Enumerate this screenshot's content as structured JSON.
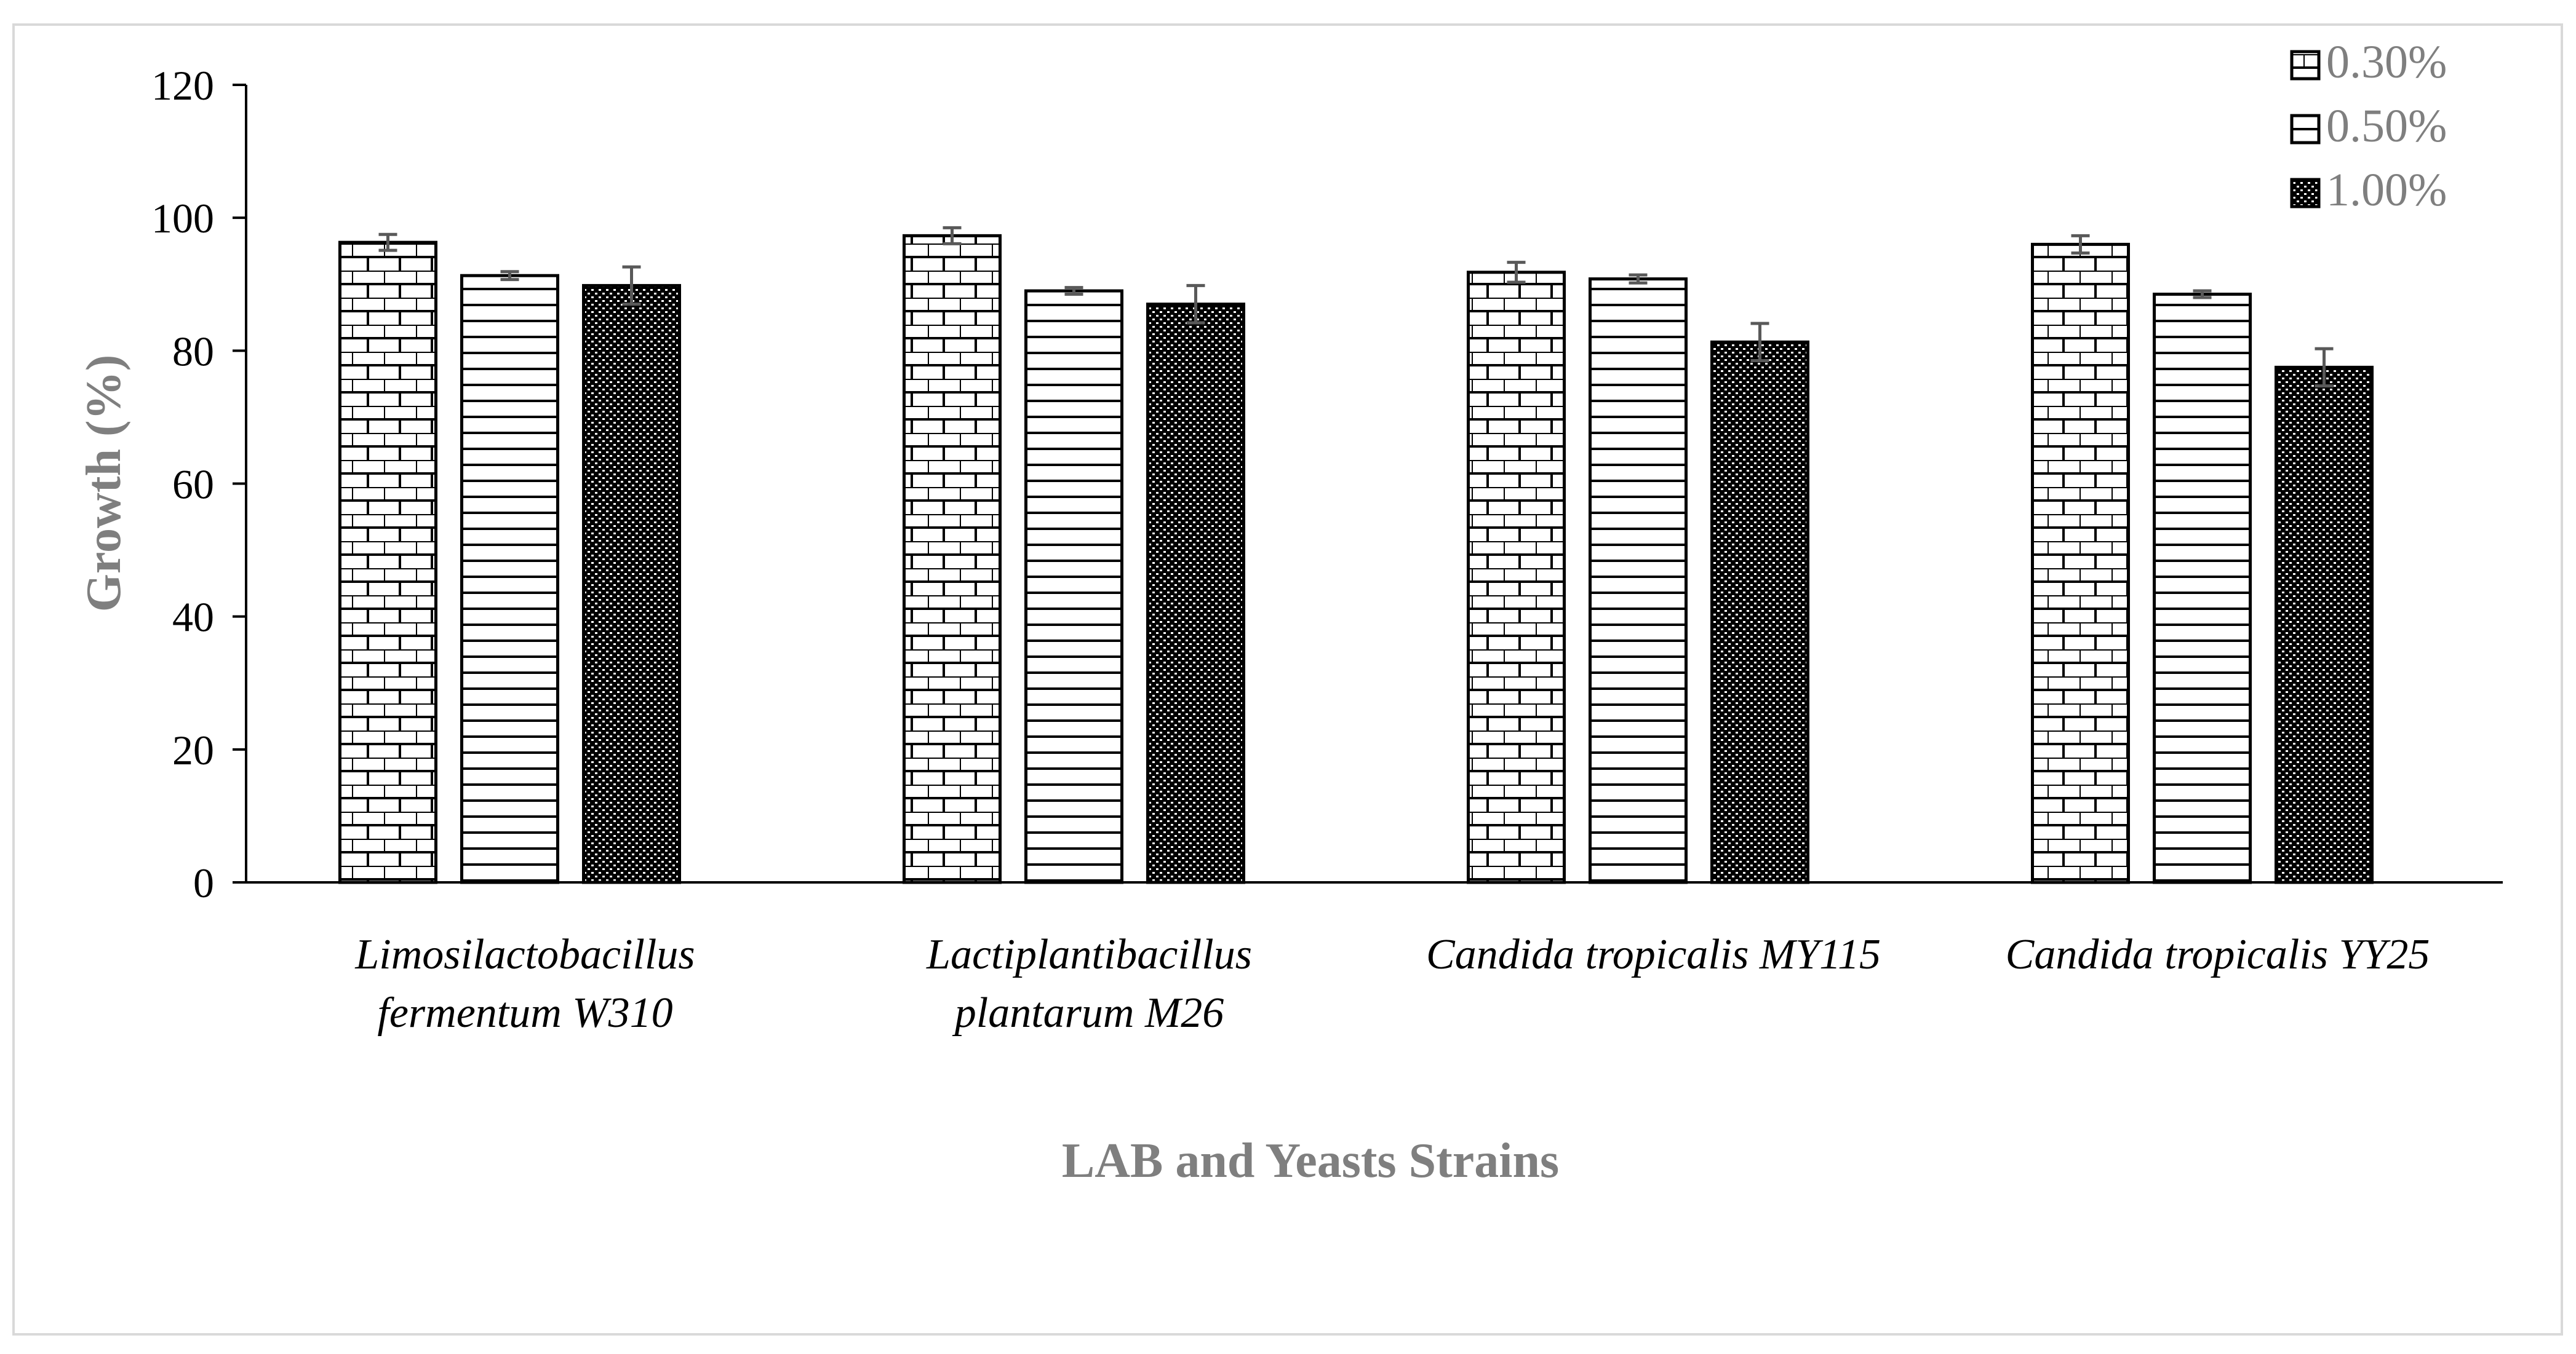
{
  "chart_data": {
    "type": "bar",
    "title": "",
    "xlabel": "LAB and Yeasts Strains",
    "ylabel": "Growth (%)",
    "ylim": [
      0,
      120
    ],
    "yticks": [
      0,
      20,
      40,
      60,
      80,
      100,
      120
    ],
    "grid": false,
    "legend_position": "top-right",
    "categories": [
      [
        "Limosilactobacillus",
        "fermentum W310"
      ],
      [
        "Lactiplantibacillus",
        "plantarum M26"
      ],
      [
        "Candida tropicalis MY115"
      ],
      [
        "Candida tropicalis YY25"
      ]
    ],
    "series": [
      {
        "name": "0.30%",
        "pattern": "brick",
        "values": [
          96.3,
          97.3,
          91.8,
          96.0
        ],
        "errors": [
          1.2,
          1.2,
          1.5,
          1.3
        ]
      },
      {
        "name": "0.50%",
        "pattern": "horizontal-lines",
        "values": [
          91.3,
          89.0,
          90.8,
          88.5
        ],
        "errors": [
          0.6,
          0.5,
          0.6,
          0.5
        ]
      },
      {
        "name": "1.00%",
        "pattern": "dots",
        "values": [
          89.8,
          87.0,
          81.3,
          77.5
        ],
        "errors": [
          2.8,
          2.8,
          2.8,
          2.8
        ]
      }
    ]
  }
}
